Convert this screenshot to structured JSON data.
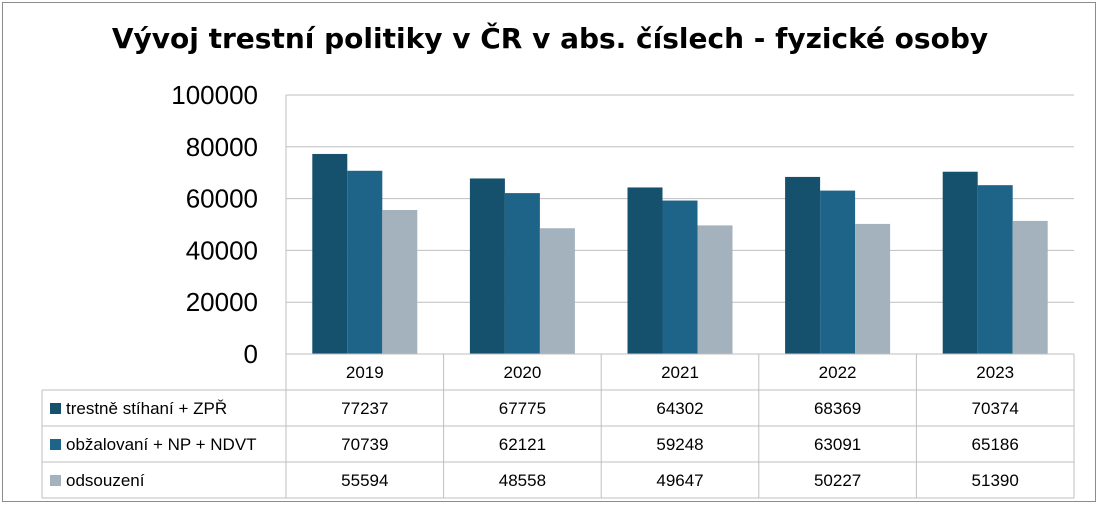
{
  "chart_data": {
    "type": "bar",
    "title": "Vývoj trestní politiky v ČR v abs. číslech - fyzické osoby",
    "categories": [
      "2019",
      "2020",
      "2021",
      "2022",
      "2023"
    ],
    "ylim": [
      0,
      100000
    ],
    "yticks": [
      0,
      20000,
      40000,
      60000,
      80000,
      100000
    ],
    "grid": true,
    "legend_placement": "data-table",
    "series": [
      {
        "name": "trestně stíhaní + ZPŘ",
        "color": "#15506d",
        "values": [
          77237,
          67775,
          64302,
          68369,
          70374
        ]
      },
      {
        "name": "obžalovaní + NP + NDVT",
        "color": "#1e6488",
        "values": [
          70739,
          62121,
          59248,
          63091,
          65186
        ]
      },
      {
        "name": "odsouzení",
        "color": "#a4b2be",
        "values": [
          55594,
          48558,
          49647,
          50227,
          51390
        ]
      }
    ]
  }
}
